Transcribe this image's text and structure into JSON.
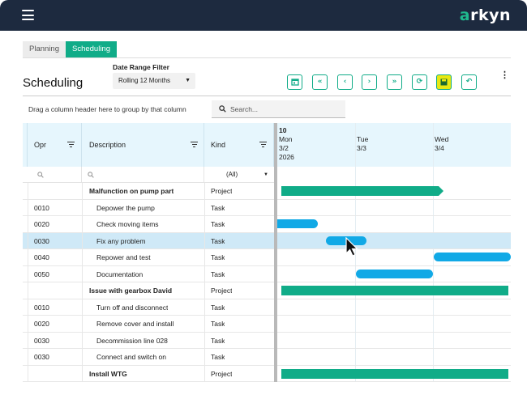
{
  "app": {
    "logo_a": "a",
    "logo_rest": "rkyn"
  },
  "tabs": [
    {
      "label": "Planning"
    },
    {
      "label": "Scheduling"
    }
  ],
  "page": {
    "title": "Scheduling"
  },
  "date_range": {
    "label": "Date Range Filter",
    "value": "Rolling 12 Months"
  },
  "toolbar": {
    "buttons": [
      {
        "icon": "calendar-icon"
      },
      {
        "icon": "double-chevron-left-icon"
      },
      {
        "icon": "chevron-left-icon"
      },
      {
        "icon": "chevron-right-icon"
      },
      {
        "icon": "double-chevron-right-icon"
      },
      {
        "icon": "refresh-icon"
      },
      {
        "icon": "save-icon"
      },
      {
        "icon": "undo-icon"
      }
    ]
  },
  "grid": {
    "group_hint": "Drag a column header here to group by that column",
    "search_placeholder": "Search...",
    "columns": {
      "opr": "Opr",
      "description": "Description",
      "kind": "Kind"
    },
    "kind_filter": "(All)",
    "week": "10",
    "dates": [
      {
        "day": "Mon",
        "date": "3/2",
        "year": "2026"
      },
      {
        "day": "Tue",
        "date": "3/3"
      },
      {
        "day": "Wed",
        "date": "3/4"
      }
    ],
    "rows": [
      {
        "opr": "",
        "description": "Malfunction on pump part",
        "kind": "Project"
      },
      {
        "opr": "0010",
        "description": "Depower the pump",
        "kind": "Task"
      },
      {
        "opr": "0020",
        "description": "Check moving items",
        "kind": "Task"
      },
      {
        "opr": "0030",
        "description": "Fix any problem",
        "kind": "Task"
      },
      {
        "opr": "0040",
        "description": "Repower and test",
        "kind": "Task"
      },
      {
        "opr": "0050",
        "description": "Documentation",
        "kind": "Task"
      },
      {
        "opr": "",
        "description": "Issue with gearbox David",
        "kind": "Project"
      },
      {
        "opr": "0010",
        "description": "Turn off and disconnect",
        "kind": "Task"
      },
      {
        "opr": "0020",
        "description": "Remove cover and install",
        "kind": "Task"
      },
      {
        "opr": "0030",
        "description": "Decommission line 028",
        "kind": "Task"
      },
      {
        "opr": "0030",
        "description": "Connect and switch on",
        "kind": "Task"
      },
      {
        "opr": "",
        "description": "Install WTG",
        "kind": "Project"
      }
    ]
  },
  "colors": {
    "brand": "#10ac88",
    "task_bar": "#11a9e6",
    "header_bg": "#e6f6fd",
    "topbar": "#1d2a3f",
    "save_button": "#e8e812"
  }
}
